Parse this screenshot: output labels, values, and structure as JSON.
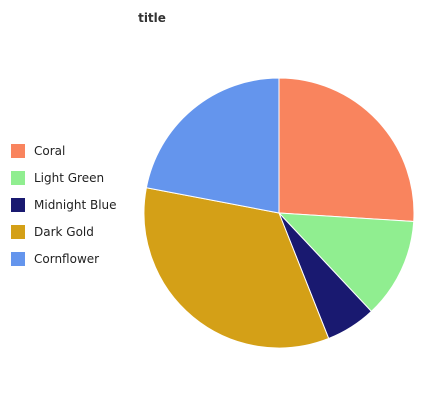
{
  "chart_data": {
    "type": "pie",
    "title": "title",
    "legend_position": "left",
    "slices": [
      {
        "label": "Coral",
        "value": 26,
        "color": "#F9845E"
      },
      {
        "label": "Light Green",
        "value": 12,
        "color": "#90EE90"
      },
      {
        "label": "Midnight Blue",
        "value": 6,
        "color": "#191970"
      },
      {
        "label": "Dark Gold",
        "value": 34,
        "color": "#D4A017"
      },
      {
        "label": "Cornflower",
        "value": 22,
        "color": "#6495ED"
      }
    ]
  }
}
